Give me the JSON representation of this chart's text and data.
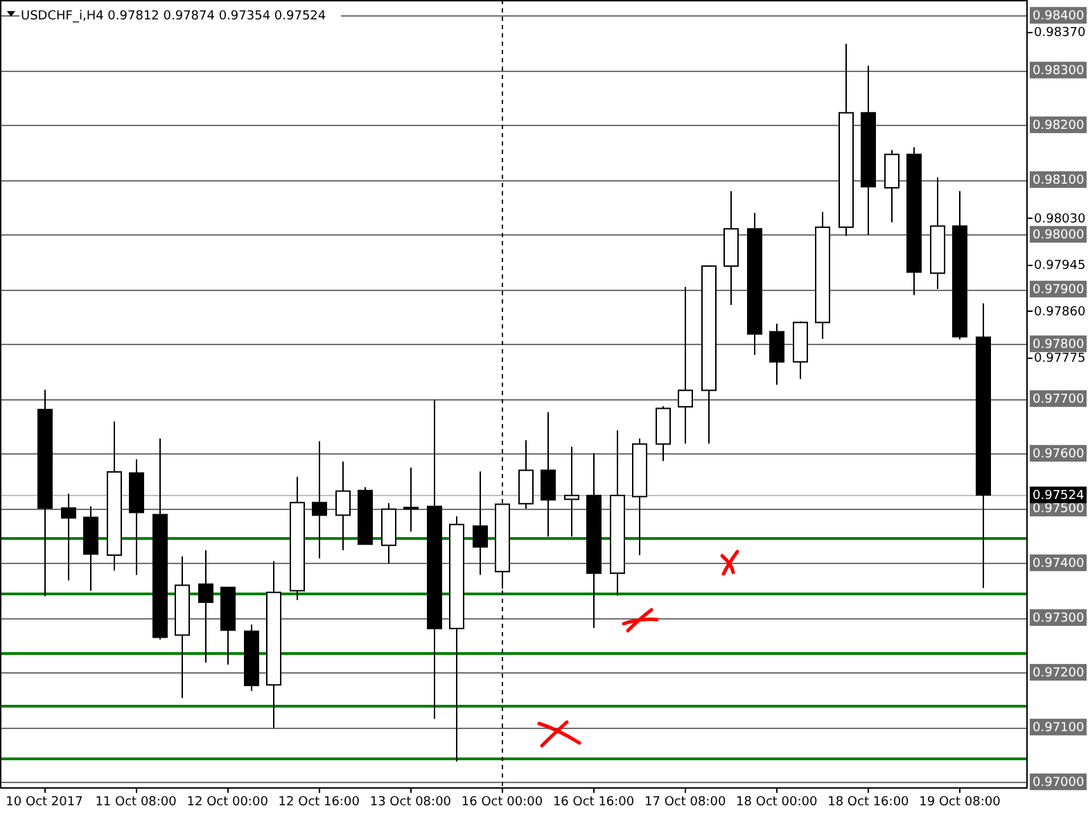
{
  "chart_data": {
    "type": "candlestick",
    "title": "USDCHF_i,H4  0.97812 0.97874 0.97354 0.97524",
    "categories": [
      "10 Oct 2017",
      null,
      null,
      null,
      "11 Oct 08:00",
      null,
      null,
      null,
      "12 Oct 00:00",
      null,
      null,
      null,
      "12 Oct 16:00",
      null,
      null,
      null,
      "13 Oct 08:00",
      null,
      null,
      null,
      "16 Oct 00:00",
      null,
      null,
      null,
      "16 Oct 16:00",
      null,
      null,
      null,
      "17 Oct 08:00",
      null,
      null,
      null,
      "18 Oct 00:00",
      null,
      null,
      null,
      "18 Oct 16:00",
      null,
      null,
      null,
      "19 Oct 08:00",
      null
    ],
    "ohlc": [
      [
        0.9768,
        0.97716,
        0.97339,
        0.975
      ],
      [
        0.975,
        0.97526,
        0.97368,
        0.97482
      ],
      [
        0.97483,
        0.97503,
        0.97349,
        0.97416
      ],
      [
        0.97414,
        0.97658,
        0.97386,
        0.97566
      ],
      [
        0.97564,
        0.97589,
        0.97378,
        0.97492
      ],
      [
        0.97488,
        0.97627,
        0.9726,
        0.97264
      ],
      [
        0.97268,
        0.97412,
        0.97153,
        0.97359
      ],
      [
        0.97361,
        0.97423,
        0.97218,
        0.97328
      ],
      [
        0.97355,
        0.97355,
        0.97214,
        0.97277
      ],
      [
        0.97275,
        0.97287,
        0.97166,
        0.97176
      ],
      [
        0.97177,
        0.97403,
        0.97098,
        0.97346
      ],
      [
        0.97349,
        0.97557,
        0.97332,
        0.9751
      ],
      [
        0.9751,
        0.97622,
        0.97408,
        0.97487
      ],
      [
        0.97487,
        0.97585,
        0.97423,
        0.97531
      ],
      [
        0.97532,
        0.97538,
        0.97434,
        0.97434
      ],
      [
        0.97432,
        0.97509,
        0.97399,
        0.97498
      ],
      [
        0.97501,
        0.97574,
        0.97457,
        0.97499
      ],
      [
        0.97503,
        0.97698,
        0.97115,
        0.9728
      ],
      [
        0.9728,
        0.97485,
        0.97037,
        0.9747
      ],
      [
        0.97467,
        0.97567,
        0.97378,
        0.97429
      ],
      [
        0.97384,
        0.97507,
        0.97353,
        0.97507
      ],
      [
        0.97508,
        0.97624,
        0.97499,
        0.97569
      ],
      [
        0.97569,
        0.97675,
        0.97448,
        0.97515
      ],
      [
        0.97516,
        0.97612,
        0.97448,
        0.97523
      ],
      [
        0.97523,
        0.976,
        0.97281,
        0.97381
      ],
      [
        0.97381,
        0.97642,
        0.9734,
        0.97523
      ],
      [
        0.97521,
        0.97627,
        0.97414,
        0.97617
      ],
      [
        0.97617,
        0.97686,
        0.97586,
        0.97682
      ],
      [
        0.97685,
        0.97904,
        0.97618,
        0.97715
      ],
      [
        0.97715,
        0.97942,
        0.97618,
        0.97942
      ],
      [
        0.97942,
        0.98079,
        0.97871,
        0.9801
      ],
      [
        0.9801,
        0.98039,
        0.9778,
        0.97818
      ],
      [
        0.97822,
        0.97837,
        0.97725,
        0.97767
      ],
      [
        0.97767,
        0.97841,
        0.97736,
        0.97839
      ],
      [
        0.97839,
        0.98041,
        0.97809,
        0.98013
      ],
      [
        0.98013,
        0.98348,
        0.97997,
        0.98222
      ],
      [
        0.98222,
        0.98308,
        0.97999,
        0.98087
      ],
      [
        0.98085,
        0.98154,
        0.98022,
        0.98146
      ],
      [
        0.98146,
        0.98159,
        0.97889,
        0.97931
      ],
      [
        0.97929,
        0.98104,
        0.979,
        0.98015
      ],
      [
        0.98015,
        0.98079,
        0.97808,
        0.97813
      ],
      [
        0.97812,
        0.97874,
        0.97354,
        0.97524
      ]
    ],
    "ylim": [
      0.9699,
      0.98428
    ],
    "yticks": [
      {
        "value": 0.9837,
        "label": "0.98370"
      },
      {
        "value": 0.9803,
        "label": "0.98030"
      },
      {
        "value": 0.97945,
        "label": "0.97945"
      },
      {
        "value": 0.9786,
        "label": "0.97860"
      },
      {
        "value": 0.97775,
        "label": "0.97775"
      }
    ],
    "ref_lines": [
      {
        "axis": "y",
        "value": 0.984,
        "label": "0.98400",
        "color": "#707070"
      },
      {
        "axis": "y",
        "value": 0.983,
        "label": "0.98300",
        "color": "#707070"
      },
      {
        "axis": "y",
        "value": 0.982,
        "label": "0.98200",
        "color": "#707070"
      },
      {
        "axis": "y",
        "value": 0.981,
        "label": "0.98100",
        "color": "#707070"
      },
      {
        "axis": "y",
        "value": 0.98,
        "label": "0.98000",
        "color": "#707070"
      },
      {
        "axis": "y",
        "value": 0.979,
        "label": "0.97900",
        "color": "#707070"
      },
      {
        "axis": "y",
        "value": 0.978,
        "label": "0.97800",
        "color": "#707070"
      },
      {
        "axis": "y",
        "value": 0.977,
        "label": "0.97700",
        "color": "#707070"
      },
      {
        "axis": "y",
        "value": 0.976,
        "label": "0.97600",
        "color": "#707070"
      },
      {
        "axis": "y",
        "value": 0.975,
        "label": "0.97500",
        "color": "#707070"
      },
      {
        "axis": "y",
        "value": 0.974,
        "label": "0.97400",
        "color": "#707070"
      },
      {
        "axis": "y",
        "value": 0.973,
        "label": "0.97300",
        "color": "#707070"
      },
      {
        "axis": "y",
        "value": 0.972,
        "label": "0.97200",
        "color": "#707070"
      },
      {
        "axis": "y",
        "value": 0.971,
        "label": "0.97100",
        "color": "#707070"
      },
      {
        "axis": "y",
        "value": 0.97,
        "label": "0.97000",
        "color": "#707070"
      },
      {
        "axis": "y",
        "value": 0.97524,
        "label": "0.97524",
        "color": "#c0c0c0"
      },
      {
        "axis": "y",
        "value": 0.97446,
        "color": "#008000"
      },
      {
        "axis": "y",
        "value": 0.97344,
        "color": "#008000"
      },
      {
        "axis": "y",
        "value": 0.97235,
        "color": "#008000"
      },
      {
        "axis": "y",
        "value": 0.97139,
        "color": "#008000"
      },
      {
        "axis": "y",
        "value": 0.97043,
        "color": "#008000"
      },
      {
        "axis": "x",
        "value": "16 Oct 00:00",
        "color": "#000000",
        "line_style": "dashed"
      }
    ]
  }
}
